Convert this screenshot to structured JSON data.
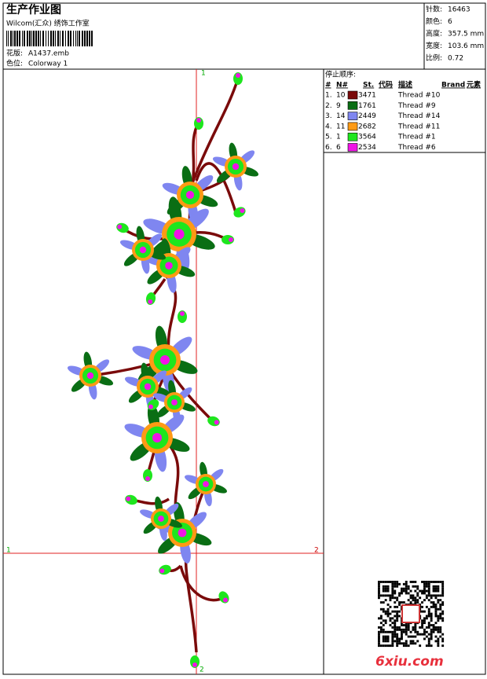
{
  "header": {
    "title": "生产作业图",
    "company": "Wilcom(汇众) 绣饰工作室",
    "design_label": "花版:",
    "design": "A1437.emb",
    "colorway_label": "色位:",
    "colorway": "Colorway 1"
  },
  "stats": [
    {
      "label": "针数:",
      "value": "16463"
    },
    {
      "label": "颜色:",
      "value": "6"
    },
    {
      "label": "高度:",
      "value": "357.5 mm"
    },
    {
      "label": "宽度:",
      "value": "103.6 mm"
    },
    {
      "label": "比例:",
      "value": "0.72"
    }
  ],
  "stop_sequence": {
    "title": "停止顺序:",
    "columns": [
      "#",
      "N#",
      "St.",
      "代码",
      "描述",
      "Brand",
      "元素"
    ],
    "rows": [
      {
        "index": "1.",
        "needle": "10",
        "color": "#7a0a0a",
        "code": "3471",
        "description": "Thread #10"
      },
      {
        "index": "2.",
        "needle": "9",
        "color": "#0a6e14",
        "code": "1761",
        "description": "Thread #9"
      },
      {
        "index": "3.",
        "needle": "14",
        "color": "#7f86f0",
        "code": "2449",
        "description": "Thread #14"
      },
      {
        "index": "4.",
        "needle": "11",
        "color": "#ff9a14",
        "code": "2682",
        "description": "Thread #11"
      },
      {
        "index": "5.",
        "needle": "1",
        "color": "#1ee61e",
        "code": "3564",
        "description": "Thread #1"
      },
      {
        "index": "6.",
        "needle": "6",
        "color": "#f014e6",
        "code": "2534",
        "description": "Thread #6"
      }
    ]
  },
  "markers": {
    "top": "1",
    "bottom": "2",
    "left": "1",
    "right": "2"
  },
  "watermark": "6xiu.com"
}
